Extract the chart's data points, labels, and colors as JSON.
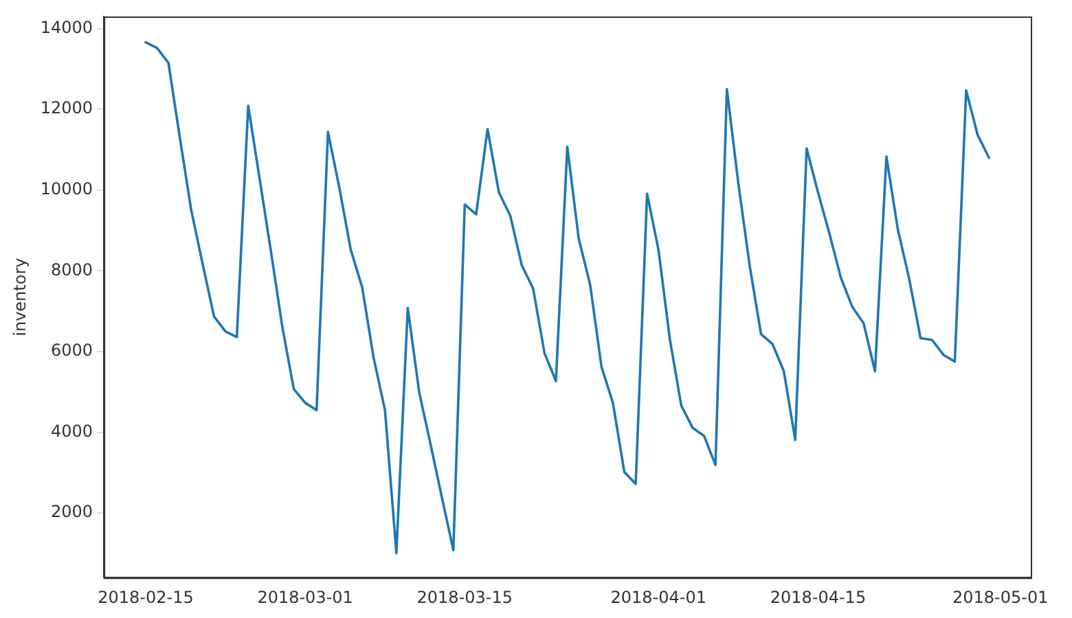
{
  "chart_data": {
    "type": "line",
    "ylabel": "inventory",
    "x": [
      "2018-02-15",
      "2018-02-16",
      "2018-02-17",
      "2018-02-18",
      "2018-02-19",
      "2018-02-20",
      "2018-02-21",
      "2018-02-22",
      "2018-02-23",
      "2018-02-24",
      "2018-02-25",
      "2018-02-26",
      "2018-02-27",
      "2018-02-28",
      "2018-03-01",
      "2018-03-02",
      "2018-03-03",
      "2018-03-04",
      "2018-03-05",
      "2018-03-06",
      "2018-03-07",
      "2018-03-08",
      "2018-03-09",
      "2018-03-10",
      "2018-03-11",
      "2018-03-12",
      "2018-03-13",
      "2018-03-14",
      "2018-03-15",
      "2018-03-16",
      "2018-03-17",
      "2018-03-18",
      "2018-03-19",
      "2018-03-20",
      "2018-03-21",
      "2018-03-22",
      "2018-03-23",
      "2018-03-24",
      "2018-03-25",
      "2018-03-26",
      "2018-03-27",
      "2018-03-28",
      "2018-03-29",
      "2018-03-30",
      "2018-03-31",
      "2018-04-01",
      "2018-04-02",
      "2018-04-03",
      "2018-04-04",
      "2018-04-05",
      "2018-04-06",
      "2018-04-07",
      "2018-04-08",
      "2018-04-09",
      "2018-04-10",
      "2018-04-11",
      "2018-04-12",
      "2018-04-13",
      "2018-04-14",
      "2018-04-15",
      "2018-04-16",
      "2018-04-17",
      "2018-04-18",
      "2018-04-19",
      "2018-04-20",
      "2018-04-21",
      "2018-04-22",
      "2018-04-23",
      "2018-04-24",
      "2018-04-25",
      "2018-04-26",
      "2018-04-27",
      "2018-04-28",
      "2018-04-29",
      "2018-04-30"
    ],
    "series": [
      {
        "color": "#1f77b4",
        "values": [
          13660,
          13520,
          13150,
          11300,
          9500,
          8170,
          6870,
          6500,
          6360,
          12090,
          10280,
          8470,
          6600,
          5070,
          4730,
          4550,
          11440,
          10050,
          8520,
          7590,
          5850,
          4550,
          1010,
          7080,
          5000,
          3700,
          2380,
          1080,
          9640,
          9400,
          11510,
          9940,
          9360,
          8140,
          7560,
          5960,
          5270,
          11070,
          8800,
          7660,
          5620,
          4730,
          3020,
          2720,
          9910,
          8520,
          6300,
          4660,
          4110,
          3910,
          3190,
          12500,
          10180,
          8130,
          6430,
          6190,
          5510,
          3810,
          11030,
          9940,
          8920,
          7830,
          7110,
          6700,
          5510,
          10830,
          9030,
          7800,
          6330,
          6290,
          5920,
          5750,
          12470,
          11370,
          10800
        ]
      }
    ],
    "xlim": [
      "2018-02-11T08:00",
      "2018-05-03T16:00"
    ],
    "xticks": [
      "2018-02-15",
      "2018-03-01",
      "2018-03-15",
      "2018-04-01",
      "2018-04-15",
      "2018-05-01"
    ],
    "ylim": [
      400,
      14300
    ],
    "yticks": [
      2000,
      4000,
      6000,
      8000,
      10000,
      12000,
      14000
    ],
    "grid": false,
    "legend": false,
    "marker": "none",
    "line_style": "solid"
  }
}
